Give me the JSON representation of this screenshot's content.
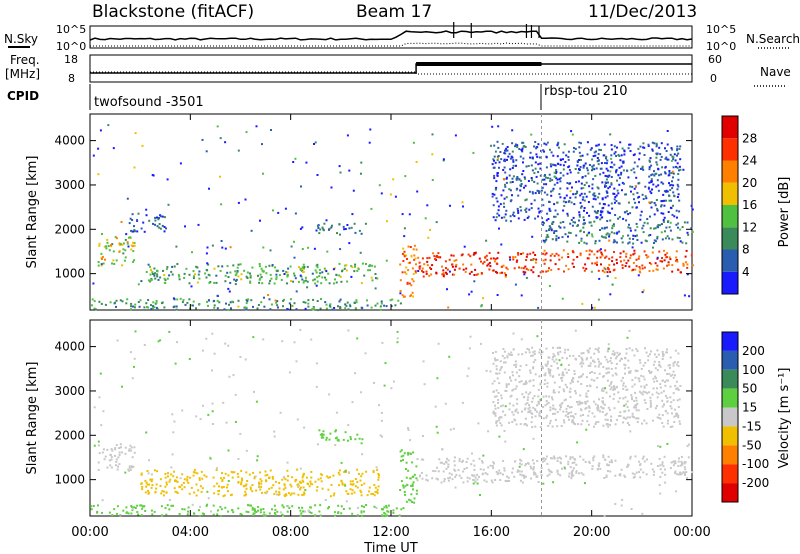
{
  "header": {
    "station": "Blackstone (fitACF)",
    "beam": "Beam 17",
    "date": "11/Dec/2013"
  },
  "labels": {
    "nsky": "N.Sky",
    "nsearch": "N.Search",
    "freq": "Freq.",
    "freq_unit": "[MHz]",
    "nave": "Nave",
    "cpid": "CPID",
    "slant_range": "Slant Range [km]",
    "time_axis": "Time UT",
    "power_label": "Power [dB]",
    "velocity_label": "Velocity [m s⁻¹]"
  },
  "noise_panel": {
    "left_ticks": [
      "10^5",
      "10^0"
    ],
    "right_ticks": [
      "10^5",
      "10^0"
    ]
  },
  "freq_panel": {
    "left_ticks": [
      "18",
      "8"
    ],
    "right_ticks": [
      "60",
      "0"
    ]
  },
  "cpid_panel": {
    "segments": [
      {
        "label": "twofsound -3501",
        "start_hour": 0,
        "end_hour": 18
      },
      {
        "label": "rbsp-tou 210",
        "start_hour": 18,
        "end_hour": 24
      }
    ]
  },
  "chart_data": [
    {
      "type": "heatmap",
      "name": "power",
      "xlabel": "Time UT",
      "ylabel": "Slant Range [km]",
      "xlim": [
        0,
        24
      ],
      "ylim": [
        180,
        4600
      ],
      "x_ticks": [
        "00:00",
        "04:00",
        "08:00",
        "12:00",
        "16:00",
        "20:00",
        "00:00"
      ],
      "y_ticks": [
        1000,
        2000,
        3000,
        4000
      ],
      "colorbar": {
        "label": "Power [dB]",
        "ticks": [
          4,
          8,
          12,
          16,
          20,
          24,
          28
        ],
        "range": [
          0,
          32
        ],
        "colors": [
          "#1a1aff",
          "#2a5db0",
          "#3a8a5a",
          "#4fc040",
          "#f0c000",
          "#ff8000",
          "#ff3000",
          "#e00000"
        ]
      },
      "scatter_bands": [
        {
          "t0": 0.3,
          "t1": 1.8,
          "r0": 1200,
          "r1": 1850,
          "level": 16
        },
        {
          "t0": 1.5,
          "t1": 3.0,
          "r0": 1950,
          "r1": 2400,
          "level": 6
        },
        {
          "t0": 2.0,
          "t1": 11.5,
          "r0": 800,
          "r1": 1250,
          "level": 12
        },
        {
          "t0": 0.0,
          "t1": 12.5,
          "r0": 200,
          "r1": 450,
          "level": 10
        },
        {
          "t0": 9.0,
          "t1": 11.0,
          "r0": 1900,
          "r1": 2150,
          "level": 6
        },
        {
          "t0": 12.3,
          "t1": 13.0,
          "r0": 500,
          "r1": 1700,
          "level": 22
        },
        {
          "t0": 13.0,
          "t1": 18.0,
          "r0": 950,
          "r1": 1500,
          "level": 27
        },
        {
          "t0": 18.0,
          "t1": 24.0,
          "r0": 1050,
          "r1": 1550,
          "level": 26
        },
        {
          "t0": 18.0,
          "t1": 24.0,
          "r0": 1700,
          "r1": 2200,
          "level": 8
        },
        {
          "t0": 16.0,
          "t1": 23.5,
          "r0": 2200,
          "r1": 4000,
          "level": 5
        }
      ]
    },
    {
      "type": "heatmap",
      "name": "velocity",
      "xlabel": "Time UT",
      "ylabel": "Slant Range [km]",
      "xlim": [
        0,
        24
      ],
      "ylim": [
        180,
        4600
      ],
      "x_ticks": [
        "00:00",
        "04:00",
        "08:00",
        "12:00",
        "16:00",
        "20:00",
        "00:00"
      ],
      "y_ticks": [
        1000,
        2000,
        3000,
        4000
      ],
      "colorbar": {
        "label": "Velocity [m s⁻¹]",
        "ticks": [
          "200",
          "100",
          "50",
          "15",
          "-15",
          "-50",
          "-100",
          "-200"
        ],
        "colors": [
          "#1a1aff",
          "#2a5db0",
          "#3a8a5a",
          "#5ed040",
          "#c8c8c8",
          "#f0c000",
          "#ff8000",
          "#ff3000",
          "#e00000"
        ]
      },
      "scatter_bands": [
        {
          "t0": 0.3,
          "t1": 1.8,
          "r0": 1200,
          "r1": 1850,
          "level": 0
        },
        {
          "t0": 2.0,
          "t1": 11.5,
          "r0": 650,
          "r1": 1250,
          "level": -40
        },
        {
          "t0": 0.0,
          "t1": 12.5,
          "r0": 200,
          "r1": 450,
          "level": 20
        },
        {
          "t0": 9.0,
          "t1": 11.0,
          "r0": 1900,
          "r1": 2150,
          "level": 40
        },
        {
          "t0": 12.3,
          "t1": 13.0,
          "r0": 500,
          "r1": 1700,
          "level": 30
        },
        {
          "t0": 13.0,
          "t1": 18.0,
          "r0": 950,
          "r1": 1500,
          "level": 0
        },
        {
          "t0": 18.0,
          "t1": 24.0,
          "r0": 1050,
          "r1": 1550,
          "level": 0
        },
        {
          "t0": 16.0,
          "t1": 23.5,
          "r0": 2200,
          "r1": 4000,
          "level": 0
        }
      ]
    }
  ]
}
